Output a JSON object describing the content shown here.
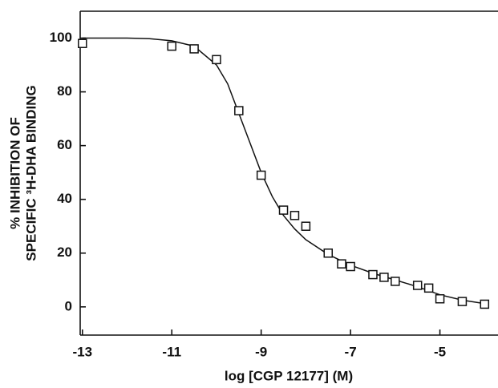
{
  "chart_data": {
    "type": "scatter",
    "xlabel": "log [CGP 12177] (M)",
    "ylabel": [
      "% INHIBITION OF",
      "SPECIFIC ³H-DHA BINDING"
    ],
    "xlim": [
      -13.05,
      -3.7
    ],
    "ylim": [
      -10.5,
      110
    ],
    "xticks": [
      -13,
      -11,
      -9,
      -7,
      -5
    ],
    "yticks": [
      0,
      20,
      40,
      60,
      80,
      100
    ],
    "series": [
      {
        "type": "scatter",
        "color": "#111",
        "x": [
          -13,
          -11,
          -10.5,
          -10,
          -9.5,
          -9,
          -8.5,
          -8.25,
          -8,
          -7.5,
          -7.2,
          -7,
          -6.5,
          -6.25,
          -6,
          -5.5,
          -5.25,
          -5,
          -4.5,
          -4
        ],
        "values": [
          98,
          97,
          96,
          92,
          73,
          49,
          36,
          34,
          30,
          20,
          16,
          15,
          12,
          11,
          9.5,
          8,
          7,
          3,
          2,
          1
        ]
      },
      {
        "type": "line",
        "color": "#111",
        "x": [
          -13,
          -12.5,
          -12,
          -11.5,
          -11,
          -10.5,
          -10,
          -9.75,
          -9.5,
          -9.25,
          -9,
          -8.75,
          -8.5,
          -8.25,
          -8,
          -7.5,
          -7,
          -6.5,
          -6,
          -5.5,
          -5,
          -4.5,
          -4
        ],
        "values": [
          100,
          100,
          100,
          99.8,
          99,
          97,
          90,
          83,
          72,
          61,
          50,
          41,
          34,
          29,
          25,
          19.5,
          15.5,
          12.5,
          10,
          7.5,
          4.5,
          2.5,
          1.2
        ]
      }
    ]
  }
}
